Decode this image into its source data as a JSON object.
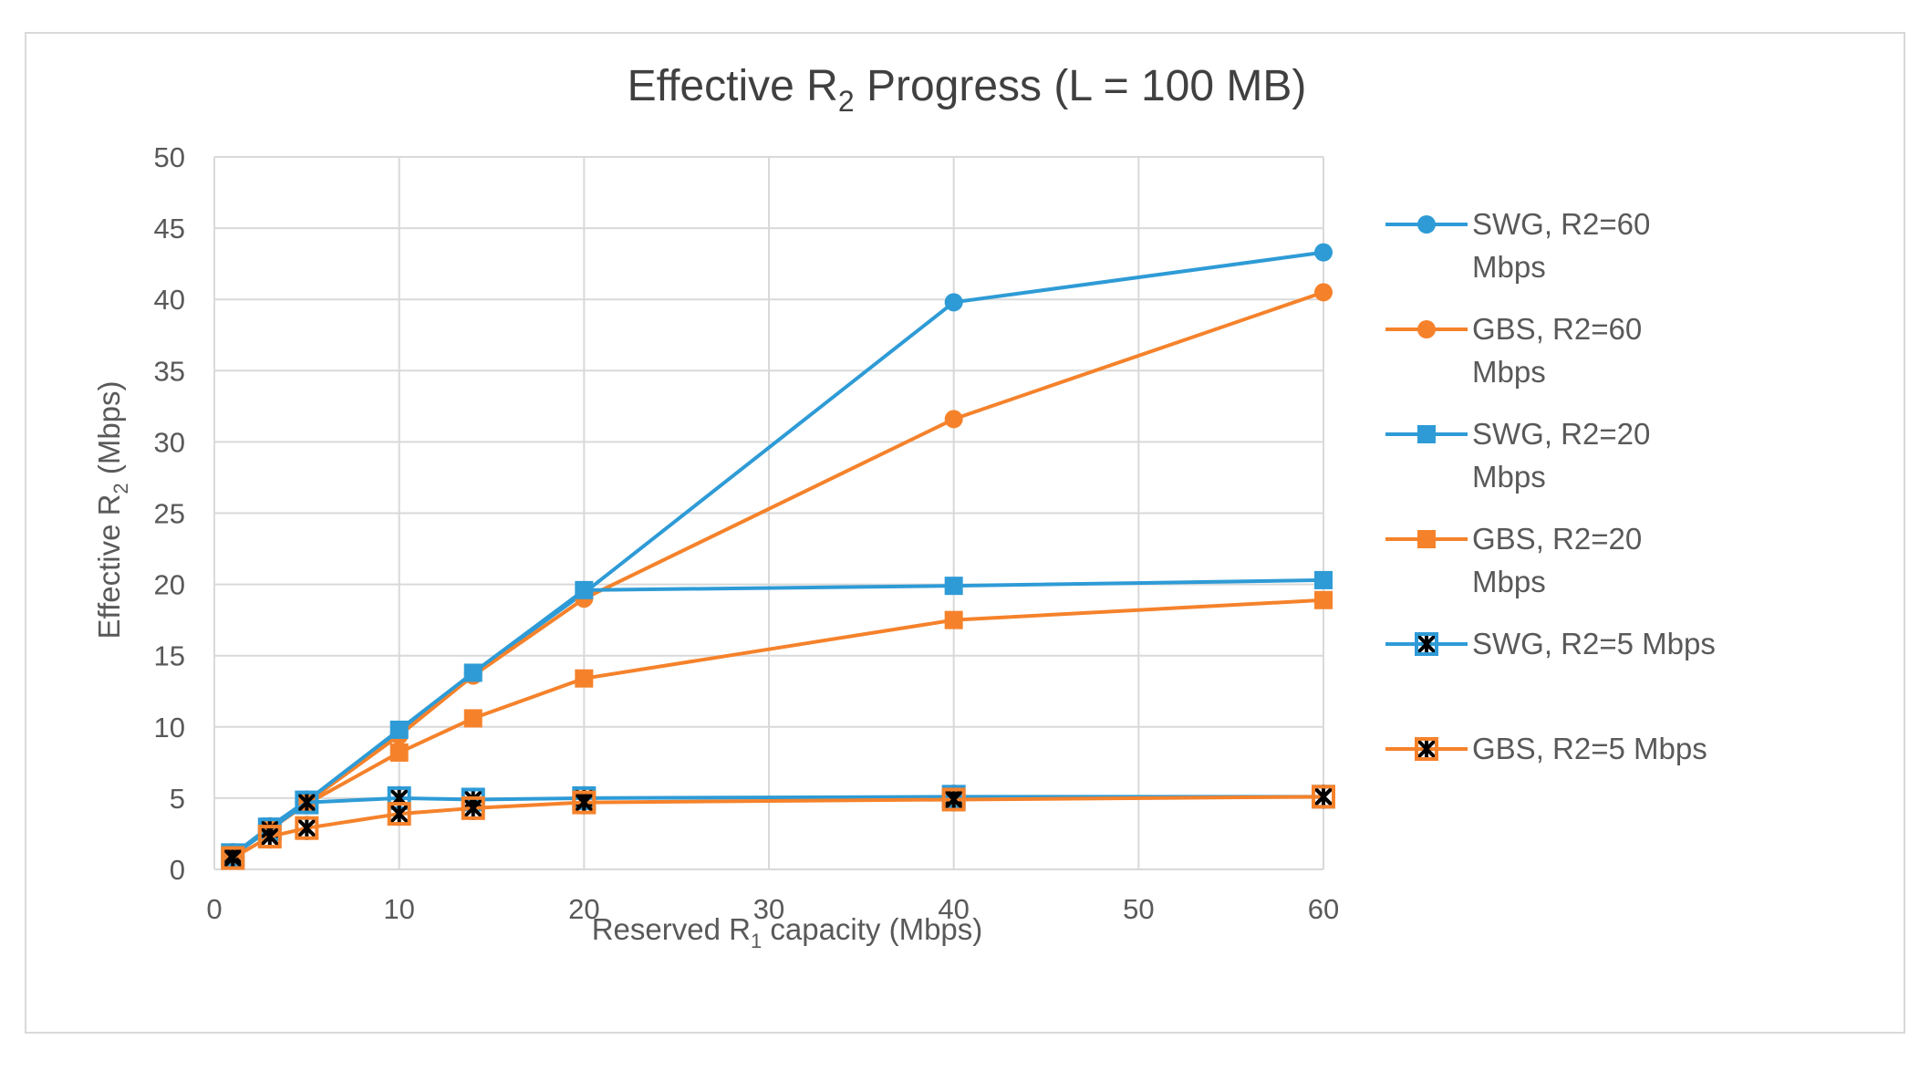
{
  "chart_data": {
    "type": "line",
    "title": "Effective R",
    "title_sub": "2",
    "title_suffix": " Progress (L = 100 MB)",
    "xlabel": "Reserved R",
    "xlabel_sub": "1",
    "xlabel_suffix": " capacity (Mbps)",
    "ylabel": "Effective R",
    "ylabel_sub": "2",
    "ylabel_suffix": " (Mbps)",
    "xlim": [
      0,
      60
    ],
    "ylim": [
      0,
      50
    ],
    "xticks": [
      0,
      10,
      20,
      30,
      40,
      50,
      60
    ],
    "yticks": [
      0,
      5,
      10,
      15,
      20,
      25,
      30,
      35,
      40,
      45,
      50
    ],
    "grid": true,
    "legend_position": "right",
    "series": [
      {
        "name": "SWG, R2=60 Mbps",
        "legend_lines": [
          "SWG, R2=60",
          "Mbps"
        ],
        "color": "#2e9bd6",
        "marker": "circle",
        "x": [
          1,
          3,
          5,
          10,
          14,
          20,
          40,
          60
        ],
        "y": [
          1.0,
          3.0,
          4.8,
          9.6,
          13.8,
          19.4,
          39.8,
          43.3
        ]
      },
      {
        "name": "GBS, R2=60 Mbps",
        "legend_lines": [
          "GBS, R2=60",
          "Mbps"
        ],
        "color": "#f5822b",
        "marker": "circle",
        "x": [
          1,
          3,
          5,
          10,
          14,
          20,
          40,
          60
        ],
        "y": [
          1.0,
          2.9,
          4.7,
          9.4,
          13.6,
          19.0,
          31.6,
          40.5
        ]
      },
      {
        "name": "SWG, R2=20 Mbps",
        "legend_lines": [
          "SWG, R2=20",
          "Mbps"
        ],
        "color": "#2e9bd6",
        "marker": "square",
        "x": [
          1,
          3,
          5,
          10,
          14,
          20,
          40,
          60
        ],
        "y": [
          1.0,
          3.0,
          4.8,
          9.8,
          13.8,
          19.6,
          19.9,
          20.3
        ]
      },
      {
        "name": "GBS, R2=20 Mbps",
        "legend_lines": [
          "GBS, R2=20",
          "Mbps"
        ],
        "color": "#f5822b",
        "marker": "square",
        "x": [
          1,
          3,
          5,
          10,
          14,
          20,
          40,
          60
        ],
        "y": [
          1.0,
          2.8,
          4.6,
          8.2,
          10.6,
          13.4,
          17.5,
          18.9
        ]
      },
      {
        "name": "SWG, R2=5 Mbps",
        "legend_lines": [
          "SWG, R2=5 Mbps"
        ],
        "color": "#2e9bd6",
        "marker": "star",
        "x": [
          1,
          3,
          5,
          10,
          14,
          20,
          40,
          60
        ],
        "y": [
          1.0,
          2.8,
          4.7,
          5.0,
          4.9,
          5.0,
          5.1,
          5.1
        ]
      },
      {
        "name": "GBS, R2=5 Mbps",
        "legend_lines": [
          "GBS, R2=5 Mbps"
        ],
        "color": "#f5822b",
        "marker": "star",
        "x": [
          1,
          3,
          5,
          10,
          14,
          20,
          40,
          60
        ],
        "y": [
          0.8,
          2.3,
          2.9,
          3.9,
          4.3,
          4.7,
          4.9,
          5.1
        ]
      }
    ]
  }
}
